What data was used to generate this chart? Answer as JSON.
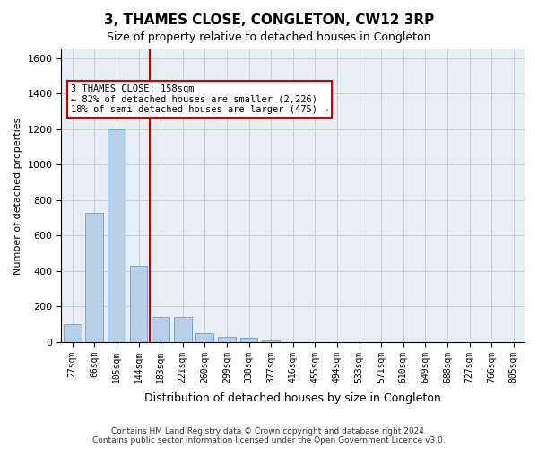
{
  "title": "3, THAMES CLOSE, CONGLETON, CW12 3RP",
  "subtitle": "Size of property relative to detached houses in Congleton",
  "xlabel": "Distribution of detached houses by size in Congleton",
  "ylabel": "Number of detached properties",
  "categories": [
    "27sqm",
    "66sqm",
    "105sqm",
    "144sqm",
    "183sqm",
    "221sqm",
    "260sqm",
    "299sqm",
    "338sqm",
    "377sqm",
    "416sqm",
    "455sqm",
    "494sqm",
    "533sqm",
    "571sqm",
    "610sqm",
    "649sqm",
    "688sqm",
    "727sqm",
    "766sqm",
    "805sqm"
  ],
  "values": [
    100,
    730,
    1200,
    430,
    140,
    140,
    50,
    30,
    25,
    10,
    0,
    0,
    0,
    0,
    0,
    0,
    0,
    0,
    0,
    0,
    0
  ],
  "bar_color": "#b8d0e8",
  "bar_edge_color": "#5a8fc0",
  "ref_line_x": 3.5,
  "ref_line_color": "#cc0000",
  "annotation_text": "3 THAMES CLOSE: 158sqm\n← 82% of detached houses are smaller (2,226)\n18% of semi-detached houses are larger (475) →",
  "annotation_box_color": "#cc0000",
  "ylim": [
    0,
    1650
  ],
  "yticks": [
    0,
    200,
    400,
    600,
    800,
    1000,
    1200,
    1400,
    1600
  ],
  "footer": "Contains HM Land Registry data © Crown copyright and database right 2024.\nContains public sector information licensed under the Open Government Licence v3.0.",
  "background_color": "#ffffff",
  "grid_color": "#cccccc"
}
